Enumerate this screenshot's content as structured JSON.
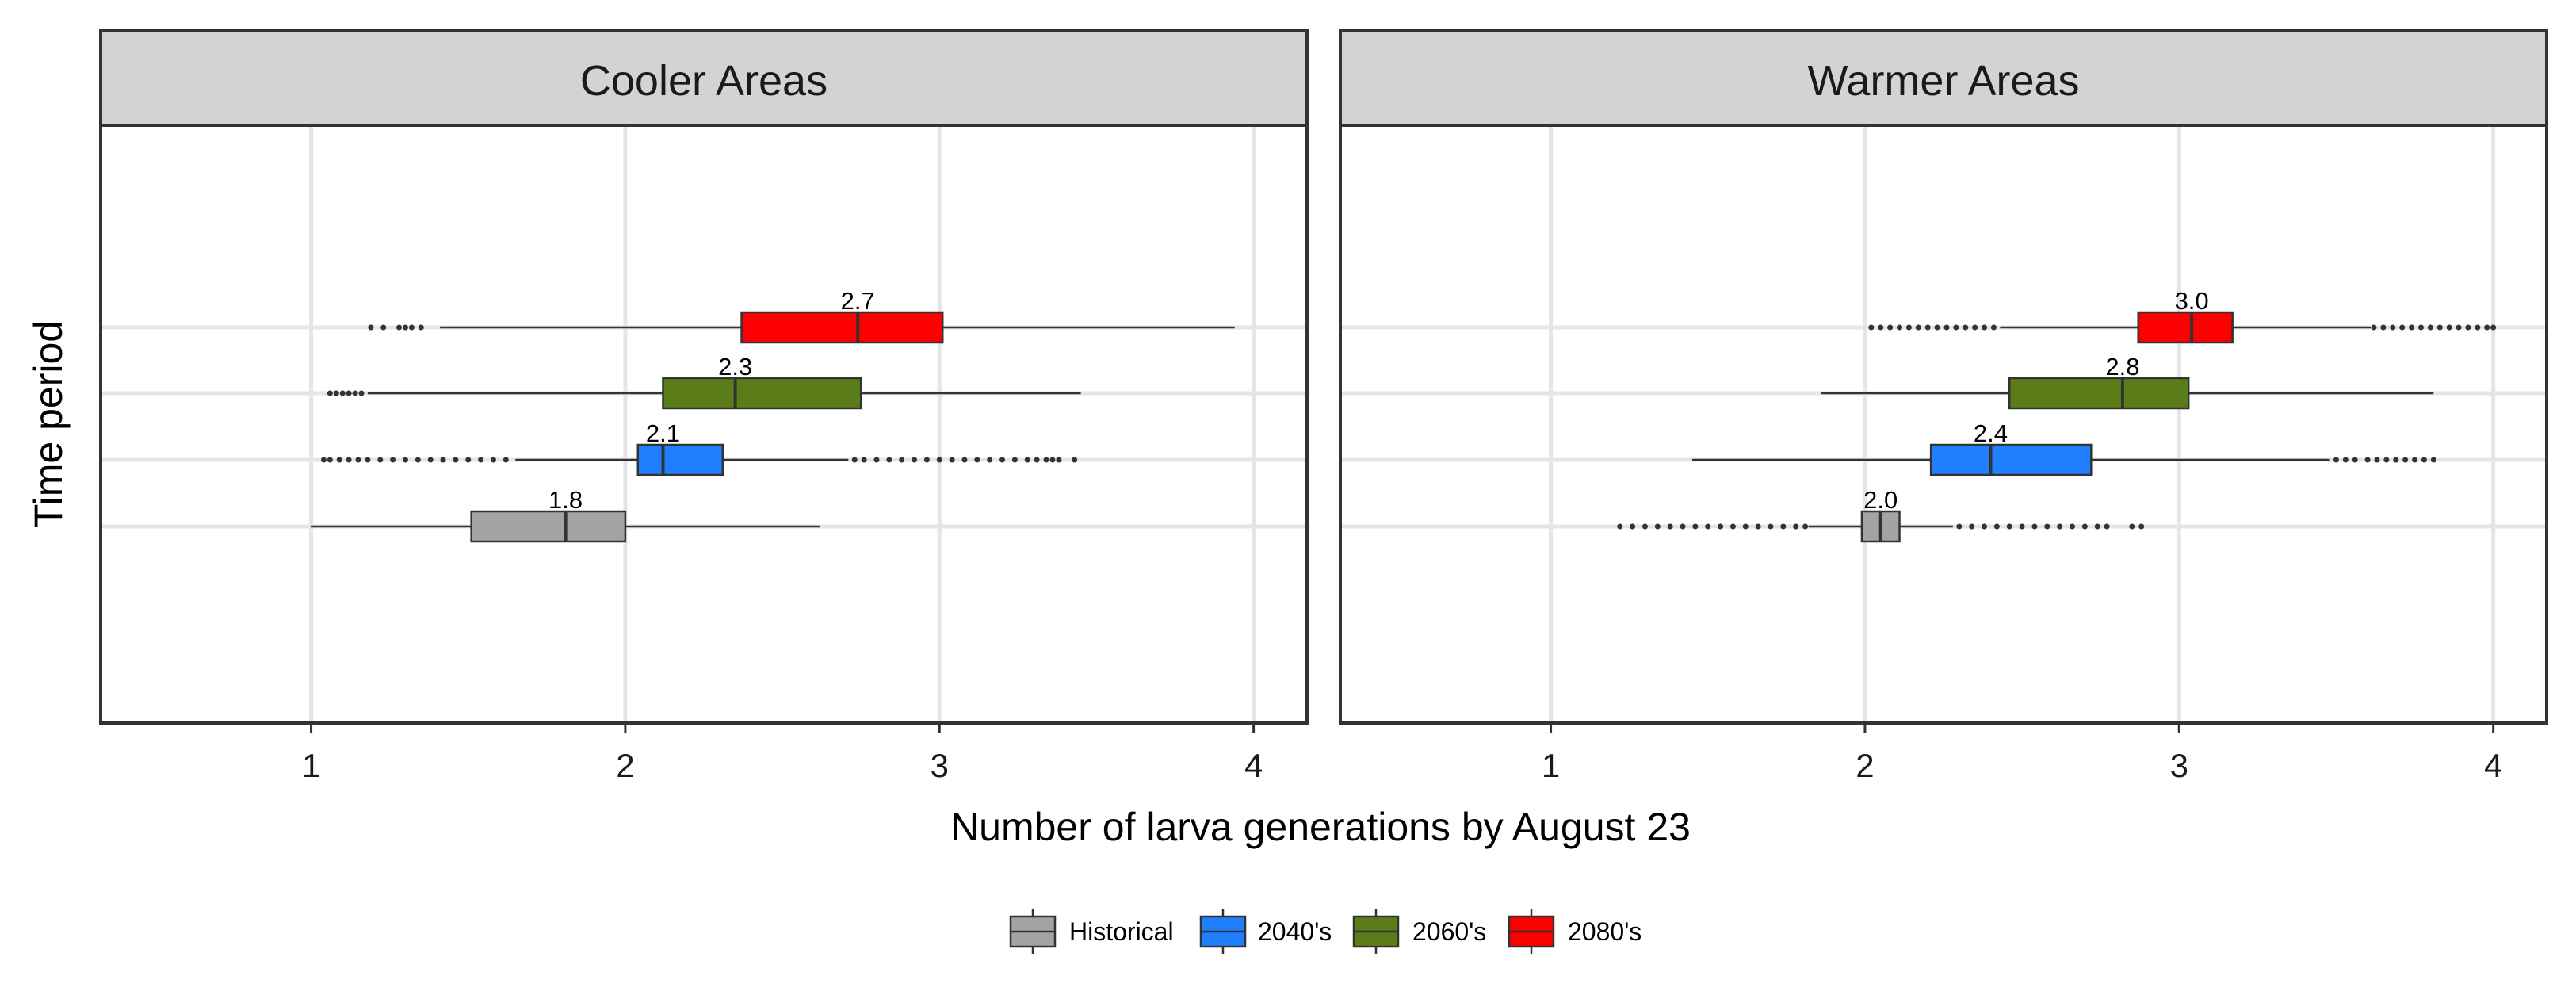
{
  "chart_data": {
    "type": "box",
    "xlabel": "Number of larva generations by August 23",
    "ylabel": "Time period",
    "xlim": [
      0.33,
      4.17
    ],
    "xticks": [
      1,
      2,
      3,
      4
    ],
    "grid": true,
    "legend_position": "bottom",
    "series": [
      {
        "name": "Historical",
        "color": "#A3A3A3"
      },
      {
        "name": "2040's",
        "color": "#1F7FFF"
      },
      {
        "name": "2060's",
        "color": "#5A7D1A"
      },
      {
        "name": "2080's",
        "color": "#FF0000"
      }
    ],
    "panels": [
      {
        "title": "Cooler Areas",
        "boxes": [
          {
            "series": "Historical",
            "q1": 1.51,
            "median": 1.81,
            "q3": 2.0,
            "whisker_low": 1.0,
            "whisker_high": 2.62,
            "label": "1.8",
            "outliers_low": [],
            "outliers_high": []
          },
          {
            "series": "2040's",
            "q1": 2.04,
            "median": 2.12,
            "q3": 2.31,
            "whisker_low": 1.65,
            "whisker_high": 2.71,
            "label": "2.1",
            "outliers_low": [
              1.04,
              1.06,
              1.09,
              1.12,
              1.15,
              1.18,
              1.22,
              1.26,
              1.3,
              1.34,
              1.38,
              1.42,
              1.46,
              1.5,
              1.54,
              1.58,
              1.62
            ],
            "outliers_high": [
              2.73,
              2.76,
              2.8,
              2.84,
              2.88,
              2.92,
              2.96,
              3.0,
              3.04,
              3.08,
              3.12,
              3.16,
              3.2,
              3.24,
              3.28,
              3.31,
              3.34,
              3.36,
              3.38,
              3.43
            ]
          },
          {
            "series": "2060's",
            "q1": 2.12,
            "median": 2.35,
            "q3": 2.75,
            "whisker_low": 1.18,
            "whisker_high": 3.45,
            "label": "2.3",
            "outliers_low": [
              1.06,
              1.08,
              1.1,
              1.12,
              1.14,
              1.16
            ],
            "outliers_high": []
          },
          {
            "series": "2080's",
            "q1": 2.37,
            "median": 2.74,
            "q3": 3.01,
            "whisker_low": 1.41,
            "whisker_high": 3.94,
            "label": "2.7",
            "outliers_low": [
              1.19,
              1.23,
              1.28,
              1.3,
              1.32,
              1.35
            ],
            "outliers_high": []
          }
        ]
      },
      {
        "title": "Warmer Areas",
        "boxes": [
          {
            "series": "Historical",
            "q1": 1.99,
            "median": 2.05,
            "q3": 2.11,
            "whisker_low": 1.82,
            "whisker_high": 2.28,
            "label": "2.0",
            "outliers_low": [
              1.22,
              1.26,
              1.3,
              1.34,
              1.38,
              1.42,
              1.46,
              1.5,
              1.54,
              1.58,
              1.62,
              1.66,
              1.7,
              1.74,
              1.78,
              1.81
            ],
            "outliers_high": [
              2.3,
              2.34,
              2.38,
              2.42,
              2.46,
              2.5,
              2.54,
              2.58,
              2.62,
              2.66,
              2.7,
              2.74,
              2.77,
              2.85,
              2.88
            ]
          },
          {
            "series": "2040's",
            "q1": 2.21,
            "median": 2.4,
            "q3": 2.72,
            "whisker_low": 1.45,
            "whisker_high": 3.48,
            "label": "2.4",
            "outliers_low": [],
            "outliers_high": [
              3.5,
              3.53,
              3.56,
              3.6,
              3.63,
              3.66,
              3.69,
              3.72,
              3.75,
              3.78,
              3.81
            ]
          },
          {
            "series": "2060's",
            "q1": 2.46,
            "median": 2.82,
            "q3": 3.03,
            "whisker_low": 1.86,
            "whisker_high": 3.81,
            "label": "2.8",
            "outliers_low": [],
            "outliers_high": []
          },
          {
            "series": "2080's",
            "q1": 2.87,
            "median": 3.04,
            "q3": 3.17,
            "whisker_low": 2.43,
            "whisker_high": 3.61,
            "label": "3.0",
            "outliers_low": [
              2.02,
              2.05,
              2.08,
              2.11,
              2.14,
              2.17,
              2.2,
              2.23,
              2.26,
              2.29,
              2.32,
              2.35,
              2.38,
              2.41
            ],
            "outliers_high": [
              3.62,
              3.65,
              3.68,
              3.71,
              3.74,
              3.77,
              3.8,
              3.83,
              3.86,
              3.89,
              3.92,
              3.95,
              3.98,
              4.0
            ]
          }
        ]
      }
    ]
  }
}
